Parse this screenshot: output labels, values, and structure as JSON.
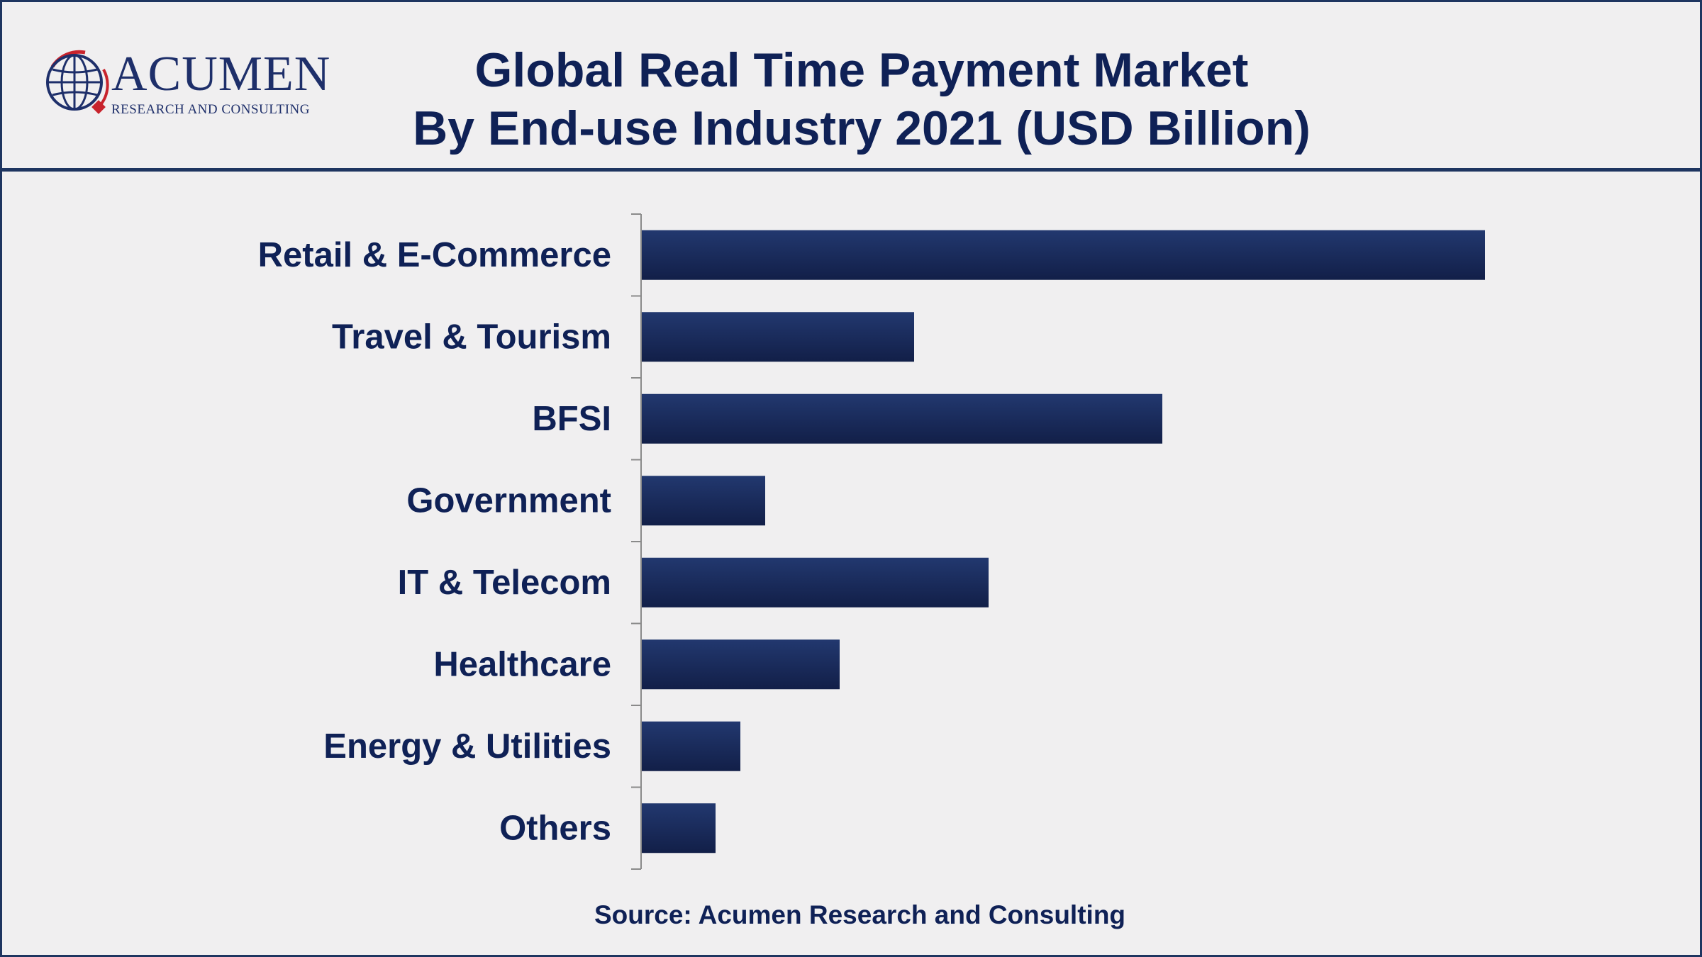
{
  "header": {
    "title_line1": "Global Real Time Payment Market",
    "title_line2": "By End-use Industry 2021 (USD Billion)"
  },
  "logo": {
    "name": "ACUMEN",
    "tagline": "RESEARCH AND CONSULTING",
    "icon": "globe-icon"
  },
  "footer": {
    "source": "Source: Acumen Research and Consulting"
  },
  "colors": {
    "bar": "#1b2f63",
    "text": "#0f2156",
    "frame": "#1e3560",
    "background": "#f0eff0"
  },
  "chart_data": {
    "type": "bar",
    "orientation": "horizontal",
    "title": "Global Real Time Payment Market By End-use Industry 2021 (USD Billion)",
    "categories": [
      "Retail & E-Commerce",
      "Travel & Tourism",
      "BFSI",
      "Government",
      "IT & Telecom",
      "Healthcare",
      "Energy & Utilities",
      "Others"
    ],
    "values": [
      34,
      11,
      21,
      5,
      14,
      8,
      4,
      3
    ],
    "xlim": [
      0,
      40
    ],
    "grid": false,
    "legend": "none",
    "value_labels": false
  }
}
